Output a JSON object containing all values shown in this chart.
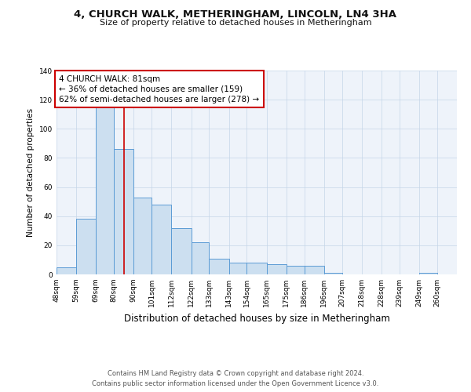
{
  "title": "4, CHURCH WALK, METHERINGHAM, LINCOLN, LN4 3HA",
  "subtitle": "Size of property relative to detached houses in Metheringham",
  "xlabel": "Distribution of detached houses by size in Metheringham",
  "ylabel": "Number of detached properties",
  "bar_labels": [
    "48sqm",
    "59sqm",
    "69sqm",
    "80sqm",
    "90sqm",
    "101sqm",
    "112sqm",
    "122sqm",
    "133sqm",
    "143sqm",
    "154sqm",
    "165sqm",
    "175sqm",
    "186sqm",
    "196sqm",
    "207sqm",
    "218sqm",
    "228sqm",
    "239sqm",
    "249sqm",
    "260sqm"
  ],
  "bar_values": [
    5,
    38,
    115,
    86,
    53,
    48,
    32,
    22,
    11,
    8,
    8,
    7,
    6,
    6,
    1,
    0,
    0,
    0,
    0,
    1,
    0
  ],
  "bin_edges": [
    42.5,
    53.5,
    64.5,
    74.5,
    85.5,
    95.5,
    106.5,
    117.5,
    127.5,
    138.5,
    148.5,
    159.5,
    170.5,
    180.5,
    191.5,
    201.5,
    212.5,
    223.5,
    233.5,
    244.5,
    254.5,
    265.5
  ],
  "bar_color": "#ccdff0",
  "bar_edge_color": "#5b9bd5",
  "vline_x": 80,
  "vline_color": "#cc0000",
  "annotation_text": "4 CHURCH WALK: 81sqm\n← 36% of detached houses are smaller (159)\n62% of semi-detached houses are larger (278) →",
  "annotation_box_color": "#ffffff",
  "annotation_box_edge": "#cc0000",
  "ylim": [
    0,
    140
  ],
  "yticks": [
    0,
    20,
    40,
    60,
    80,
    100,
    120,
    140
  ],
  "footer_line1": "Contains HM Land Registry data © Crown copyright and database right 2024.",
  "footer_line2": "Contains public sector information licensed under the Open Government Licence v3.0.",
  "background_color": "#eef3fa",
  "title_fontsize": 9.5,
  "subtitle_fontsize": 8,
  "xlabel_fontsize": 8.5,
  "ylabel_fontsize": 7.5,
  "tick_fontsize": 6.5,
  "annotation_fontsize": 7.5,
  "footer_fontsize": 6
}
